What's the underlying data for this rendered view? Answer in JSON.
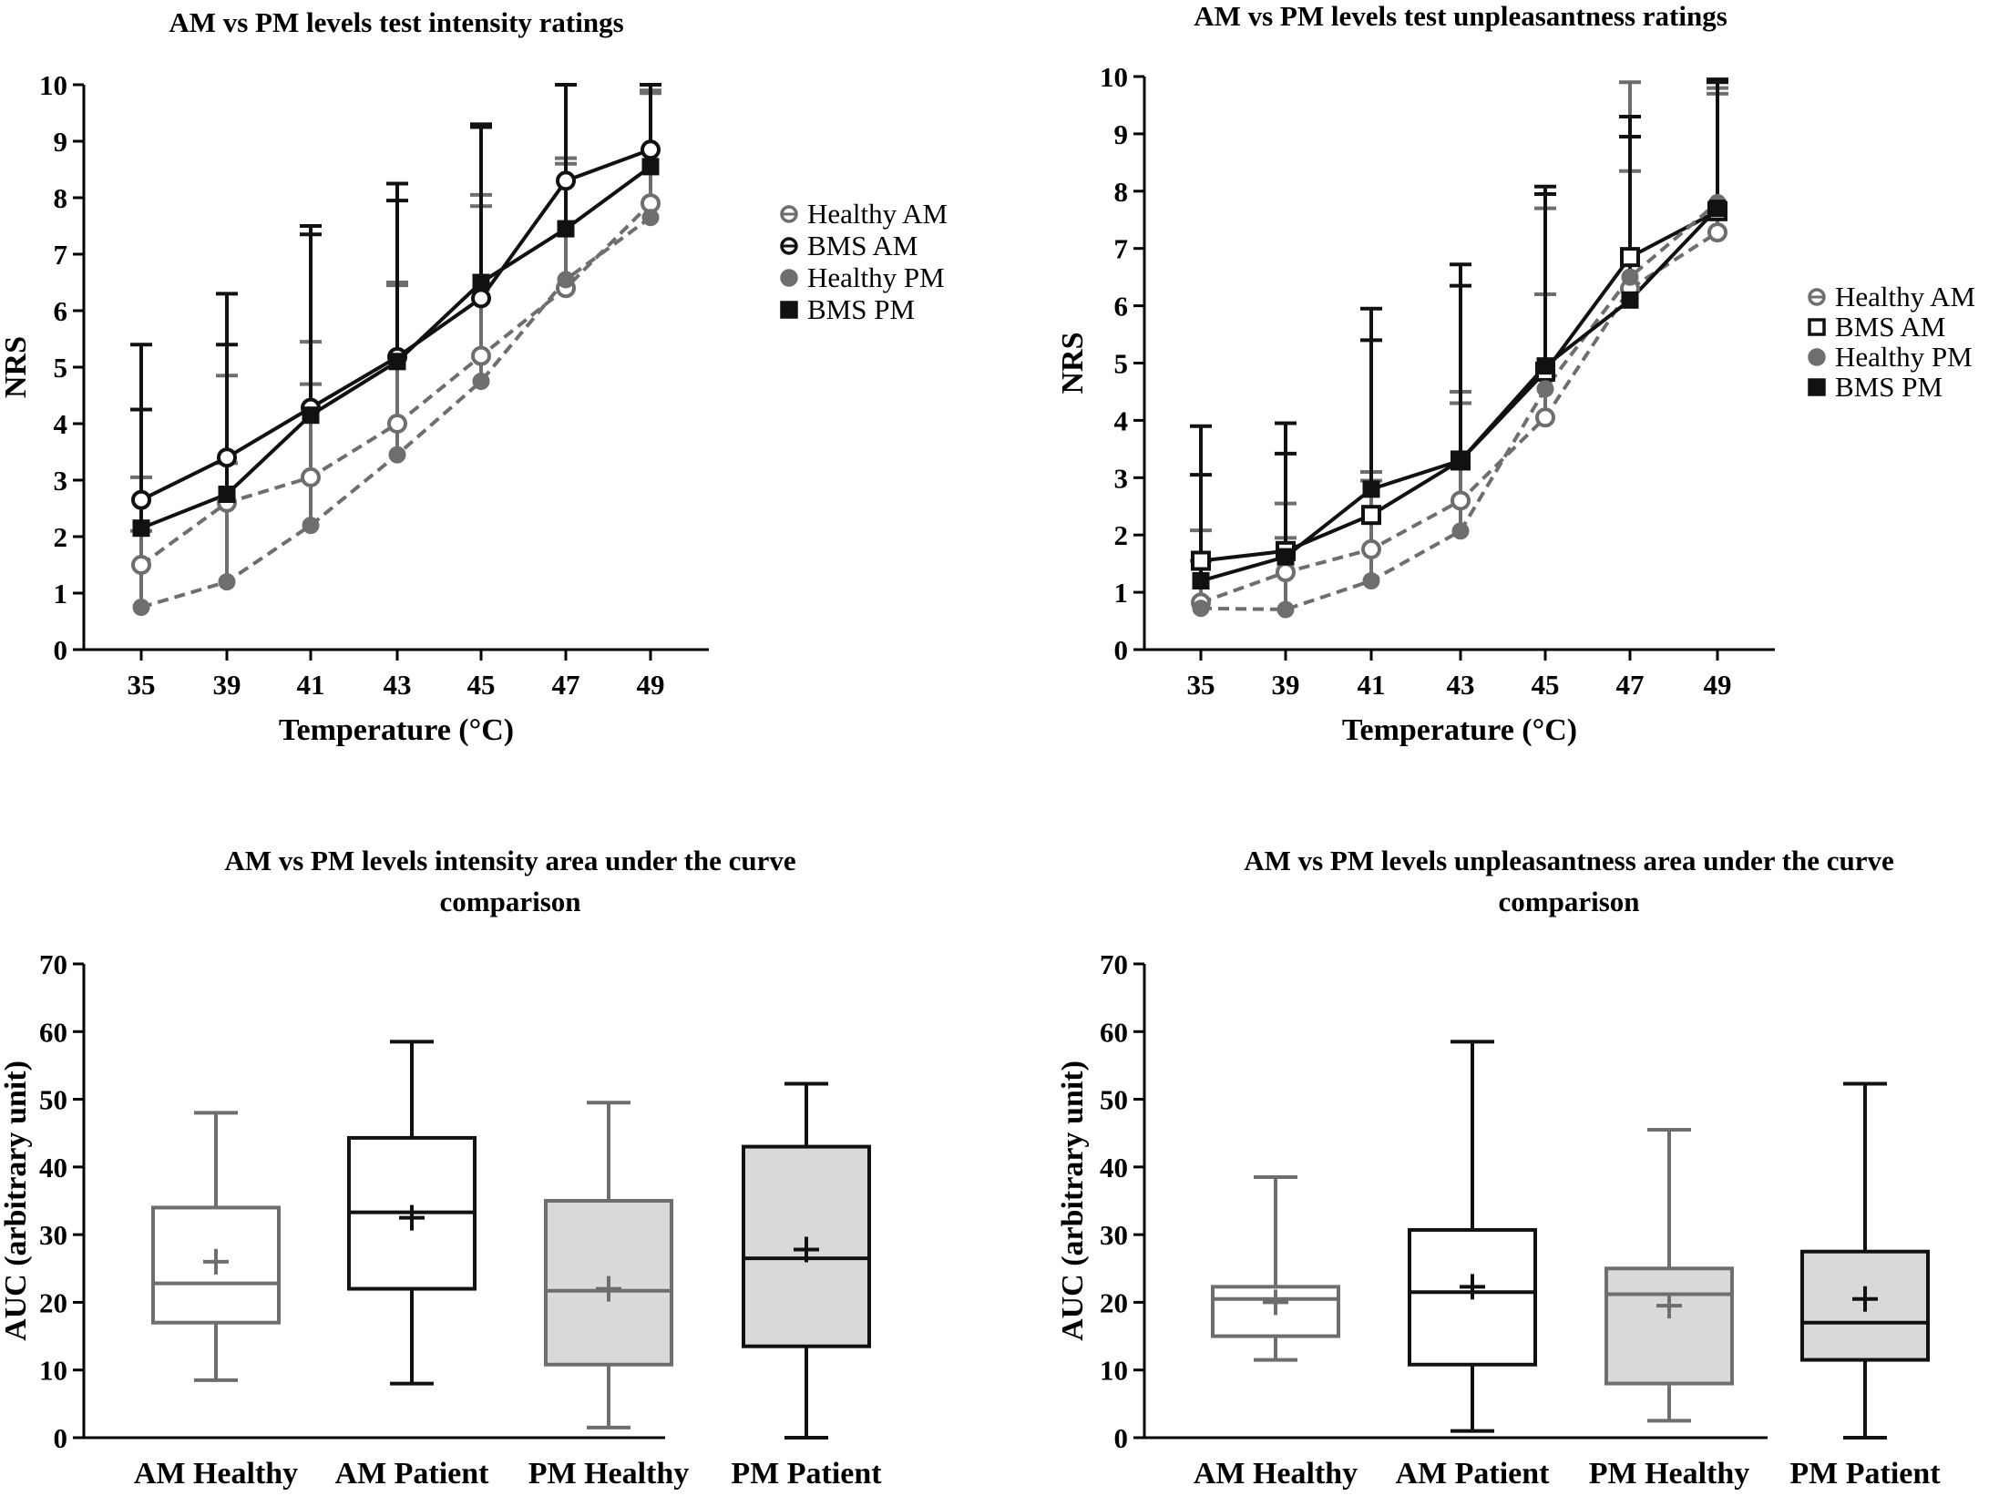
{
  "colors": {
    "dark": "#111111",
    "gray": "#6e6e6e",
    "light_gray": "#9a9a9a",
    "box_fill_pm": "#d9d9d9"
  },
  "chart_data": [
    {
      "type": "line",
      "title": "AM vs PM levels test intensity ratings",
      "xlabel": "Temperature  (°C)",
      "ylabel": "NRS",
      "categories": [
        "35",
        "39",
        "41",
        "43",
        "45",
        "47",
        "49"
      ],
      "ylim": [
        0,
        10
      ],
      "yticks": [
        "0",
        "1",
        "2",
        "3",
        "4",
        "5",
        "6",
        "7",
        "8",
        "9",
        "10"
      ],
      "legend_position": "right",
      "series": [
        {
          "name": "Healthy AM",
          "marker": "circle-open",
          "color": "gray",
          "dash": true,
          "values": [
            1.5,
            2.6,
            3.05,
            4.0,
            5.2,
            6.4,
            7.9
          ],
          "err_upper": [
            3.05,
            4.85,
            5.45,
            6.5,
            8.05,
            8.7,
            9.9
          ]
        },
        {
          "name": "BMS AM",
          "marker": "circle-open",
          "color": "dark",
          "dash": false,
          "values": [
            2.65,
            3.4,
            4.28,
            5.18,
            6.22,
            8.3,
            8.85
          ],
          "err_upper": [
            5.4,
            6.3,
            7.5,
            8.25,
            9.25,
            10.0,
            10.0
          ]
        },
        {
          "name": "Healthy PM",
          "marker": "circle-filled",
          "color": "gray",
          "dash": true,
          "values": [
            0.75,
            1.2,
            2.2,
            3.45,
            4.75,
            6.55,
            7.65
          ],
          "err_upper": [
            2.1,
            3.3,
            4.7,
            6.45,
            7.85,
            8.6,
            9.85
          ]
        },
        {
          "name": "BMS PM",
          "marker": "square-filled",
          "color": "dark",
          "dash": false,
          "values": [
            2.15,
            2.75,
            4.15,
            5.1,
            6.5,
            7.45,
            8.55
          ],
          "err_upper": [
            4.25,
            5.4,
            7.35,
            7.95,
            9.3,
            10.0,
            10.0
          ]
        }
      ]
    },
    {
      "type": "line",
      "title": "AM vs PM levels test unpleasantness ratings",
      "xlabel": "Temperature  (°C)",
      "ylabel": "NRS",
      "categories": [
        "35",
        "39",
        "41",
        "43",
        "45",
        "47",
        "49"
      ],
      "ylim": [
        0,
        10
      ],
      "yticks": [
        "0",
        "1",
        "2",
        "3",
        "4",
        "5",
        "6",
        "7",
        "8",
        "9",
        "10"
      ],
      "legend_position": "right",
      "series": [
        {
          "name": "Healthy AM",
          "marker": "circle-open",
          "color": "gray",
          "dash": true,
          "values": [
            0.82,
            1.35,
            1.75,
            2.6,
            4.05,
            6.3,
            7.28
          ],
          "err_upper": [
            2.08,
            2.55,
            3.1,
            4.5,
            6.2,
            8.35,
            9.7
          ]
        },
        {
          "name": "BMS AM",
          "marker": "square-open",
          "color": "dark",
          "dash": false,
          "values": [
            1.55,
            1.72,
            2.35,
            3.3,
            4.85,
            6.85,
            7.65
          ],
          "err_upper": [
            3.05,
            3.42,
            5.4,
            6.35,
            7.95,
            8.95,
            9.9
          ]
        },
        {
          "name": "Healthy PM",
          "marker": "circle-filled",
          "color": "gray",
          "dash": true,
          "values": [
            0.72,
            0.7,
            1.2,
            2.07,
            4.55,
            6.5,
            7.8
          ],
          "err_upper": [
            1.55,
            1.95,
            2.95,
            4.3,
            7.7,
            9.9,
            9.8
          ]
        },
        {
          "name": "BMS PM",
          "marker": "square-filled",
          "color": "dark",
          "dash": false,
          "values": [
            1.2,
            1.62,
            2.8,
            3.3,
            4.95,
            6.1,
            7.7
          ],
          "err_upper": [
            3.9,
            3.95,
            5.95,
            6.72,
            8.08,
            9.3,
            9.95
          ]
        }
      ]
    },
    {
      "type": "box",
      "title": "AM vs PM levels intensity area under the curve",
      "title_line2": "comparison",
      "ylabel": "AUC (arbitrary unit)",
      "ylim": [
        0,
        70
      ],
      "yticks": [
        "0",
        "10",
        "20",
        "30",
        "40",
        "50",
        "60",
        "70"
      ],
      "categories": [
        "AM Healthy",
        "AM Patient",
        "PM Healthy",
        "PM Patient"
      ],
      "boxes": [
        {
          "label": "AM Healthy",
          "min": 8.5,
          "q1": 17,
          "median": 22.8,
          "q3": 34,
          "max": 48,
          "mean": 26,
          "color": "gray",
          "fill": false
        },
        {
          "label": "AM Patient",
          "min": 8,
          "q1": 22,
          "median": 33.3,
          "q3": 44.3,
          "max": 58.5,
          "mean": 32.5,
          "color": "dark",
          "fill": false
        },
        {
          "label": "PM Healthy",
          "min": 1.5,
          "q1": 10.8,
          "median": 21.7,
          "q3": 35,
          "max": 49.5,
          "mean": 22,
          "color": "gray",
          "fill": true
        },
        {
          "label": "PM Patient",
          "min": 0,
          "q1": 13.5,
          "median": 26.5,
          "q3": 43,
          "max": 52.3,
          "mean": 27.8,
          "color": "dark",
          "fill": true
        }
      ]
    },
    {
      "type": "box",
      "title": "AM vs PM levels unpleasantness area under the curve",
      "title_line2": "comparison",
      "ylabel": "AUC (arbitrary unit)",
      "ylim": [
        0,
        70
      ],
      "yticks": [
        "0",
        "10",
        "20",
        "30",
        "40",
        "50",
        "60",
        "70"
      ],
      "categories": [
        "AM Healthy",
        "AM Patient",
        "PM Healthy",
        "PM Patient"
      ],
      "boxes": [
        {
          "label": "AM Healthy",
          "min": 11.5,
          "q1": 15,
          "median": 20.5,
          "q3": 22.3,
          "max": 38.5,
          "mean": 20,
          "color": "gray",
          "fill": false
        },
        {
          "label": "AM Patient",
          "min": 1,
          "q1": 10.8,
          "median": 21.5,
          "q3": 30.7,
          "max": 58.5,
          "mean": 22.3,
          "color": "dark",
          "fill": false
        },
        {
          "label": "PM Healthy",
          "min": 2.5,
          "q1": 8,
          "median": 21.2,
          "q3": 25,
          "max": 45.5,
          "mean": 19.5,
          "color": "gray",
          "fill": true
        },
        {
          "label": "PM Patient",
          "min": 0,
          "q1": 11.5,
          "median": 17,
          "q3": 27.5,
          "max": 52.3,
          "mean": 20.5,
          "color": "dark",
          "fill": true
        }
      ]
    }
  ]
}
